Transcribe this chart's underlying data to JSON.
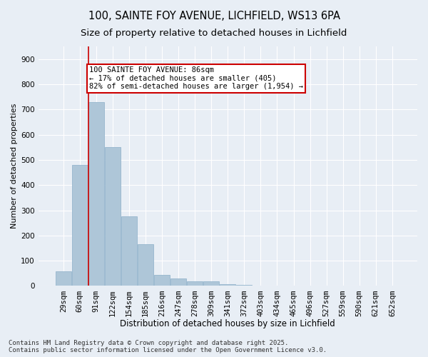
{
  "title1": "100, SAINTE FOY AVENUE, LICHFIELD, WS13 6PA",
  "title2": "Size of property relative to detached houses in Lichfield",
  "xlabel": "Distribution of detached houses by size in Lichfield",
  "ylabel": "Number of detached properties",
  "categories": [
    "29sqm",
    "60sqm",
    "91sqm",
    "122sqm",
    "154sqm",
    "185sqm",
    "216sqm",
    "247sqm",
    "278sqm",
    "309sqm",
    "341sqm",
    "372sqm",
    "403sqm",
    "434sqm",
    "465sqm",
    "496sqm",
    "527sqm",
    "559sqm",
    "590sqm",
    "621sqm",
    "652sqm"
  ],
  "values": [
    57,
    480,
    730,
    550,
    275,
    165,
    43,
    30,
    18,
    18,
    7,
    5,
    0,
    0,
    0,
    0,
    0,
    0,
    0,
    0,
    0
  ],
  "bar_color": "#aec6d8",
  "bar_edge_color": "#8baec8",
  "background_color": "#e8eef5",
  "grid_color": "#ffffff",
  "vline_color": "#cc0000",
  "annotation_text": "100 SAINTE FOY AVENUE: 86sqm\n← 17% of detached houses are smaller (405)\n82% of semi-detached houses are larger (1,954) →",
  "annotation_box_color": "#ffffff",
  "annotation_box_edge": "#cc0000",
  "footer1": "Contains HM Land Registry data © Crown copyright and database right 2025.",
  "footer2": "Contains public sector information licensed under the Open Government Licence v3.0.",
  "ylim": [
    0,
    950
  ],
  "yticks": [
    0,
    100,
    200,
    300,
    400,
    500,
    600,
    700,
    800,
    900
  ],
  "title1_fontsize": 10.5,
  "title2_fontsize": 9.5,
  "xlabel_fontsize": 8.5,
  "ylabel_fontsize": 8,
  "tick_fontsize": 7.5,
  "annotation_fontsize": 7.5,
  "footer_fontsize": 6.5
}
